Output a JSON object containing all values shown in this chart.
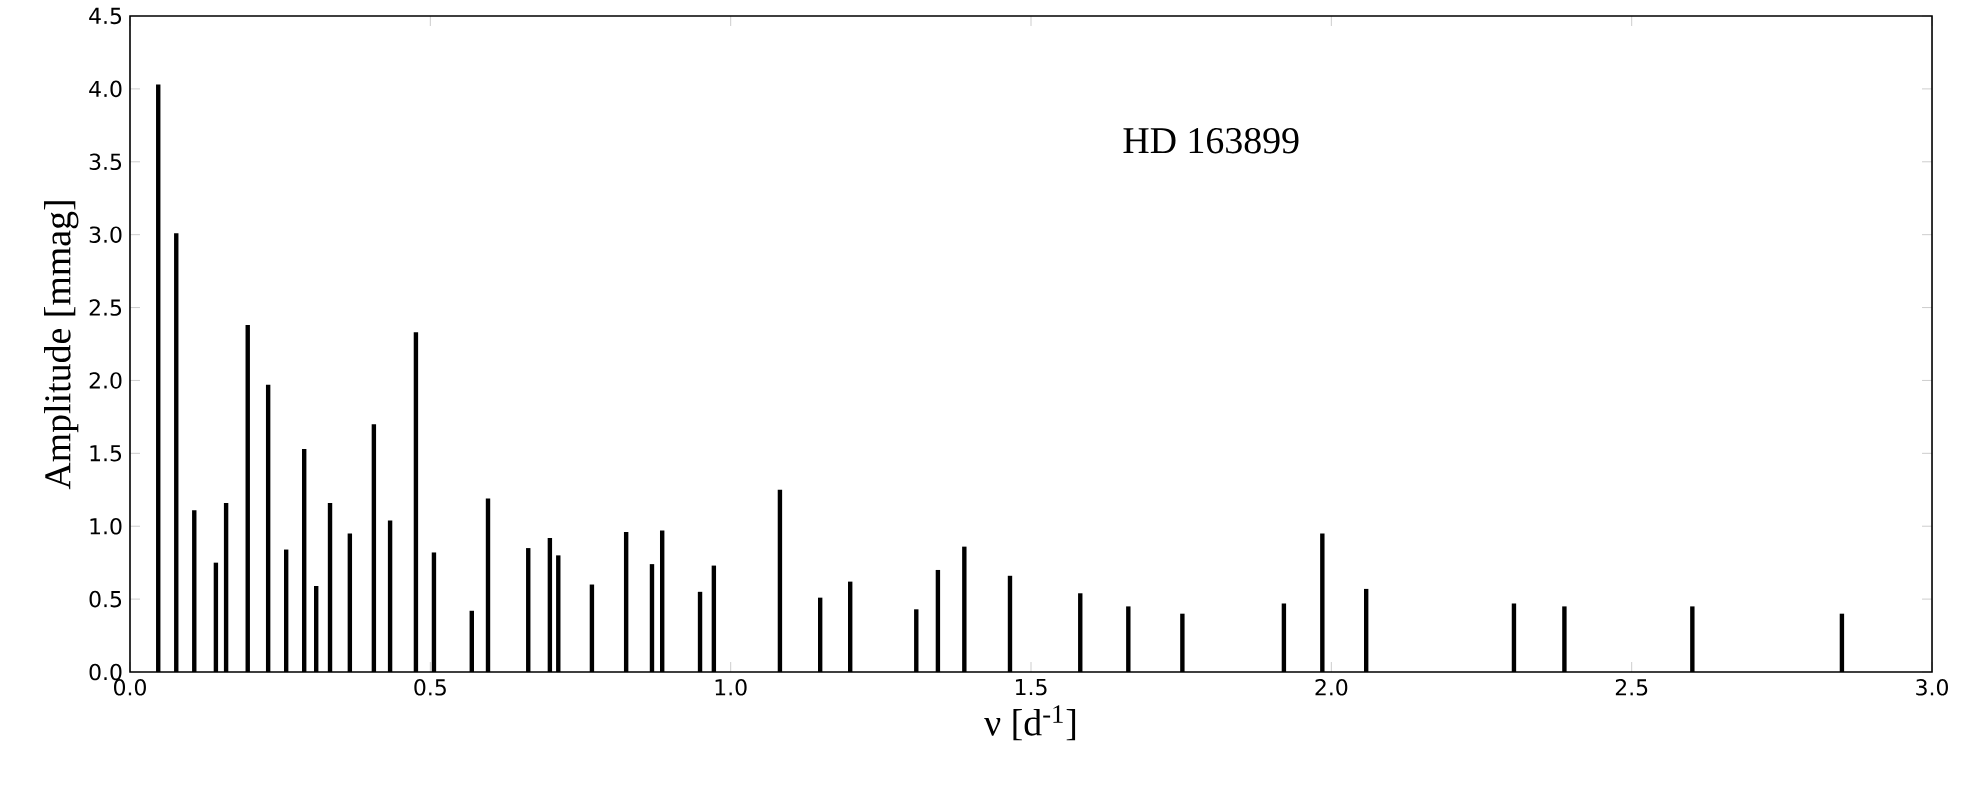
{
  "chart_data": {
    "type": "bar",
    "title": "HD 163899",
    "xlabel": "ν [d$^{-1}$]",
    "ylabel": "Amplitude [mmag]",
    "color": "#000000",
    "x": [
      0.047,
      0.077,
      0.107,
      0.143,
      0.16,
      0.196,
      0.23,
      0.26,
      0.29,
      0.31,
      0.333,
      0.366,
      0.406,
      0.433,
      0.476,
      0.506,
      0.569,
      0.596,
      0.663,
      0.699,
      0.713,
      0.769,
      0.826,
      0.869,
      0.886,
      0.949,
      0.972,
      1.082,
      1.149,
      1.199,
      1.309,
      1.345,
      1.389,
      1.465,
      1.582,
      1.662,
      1.752,
      1.921,
      1.985,
      2.058,
      2.304,
      2.388,
      2.601,
      2.85
    ],
    "values": [
      4.03,
      3.01,
      1.11,
      0.75,
      1.16,
      2.38,
      1.97,
      0.84,
      1.53,
      0.59,
      1.16,
      0.95,
      1.7,
      1.04,
      2.33,
      0.82,
      0.42,
      1.19,
      0.85,
      0.92,
      0.8,
      0.6,
      0.96,
      0.74,
      0.97,
      0.55,
      0.73,
      1.25,
      0.51,
      0.62,
      0.43,
      0.7,
      0.86,
      0.66,
      0.54,
      0.45,
      0.4,
      0.47,
      0.95,
      0.57,
      0.47,
      0.45,
      0.45,
      0.4
    ],
    "xlim": [
      0,
      3.0
    ],
    "xticks": [
      {
        "value": 0,
        "label": "0.0"
      },
      {
        "value": 0.5,
        "label": "0.5"
      },
      {
        "value": 1,
        "label": "1.0"
      },
      {
        "value": 1.5,
        "label": "1.5"
      },
      {
        "value": 2,
        "label": "2.0"
      },
      {
        "value": 2.5,
        "label": "2.5"
      },
      {
        "value": 3,
        "label": "3.0"
      }
    ],
    "ylim": [
      0,
      4.5
    ],
    "yticks": [
      {
        "value": 0,
        "label": "0.0"
      },
      {
        "value": 0.5,
        "label": "0.5"
      },
      {
        "value": 1,
        "label": "1.0"
      },
      {
        "value": 1.5,
        "label": "1.5"
      },
      {
        "value": 2,
        "label": "2.0"
      },
      {
        "value": 2.5,
        "label": "2.5"
      },
      {
        "value": 3,
        "label": "3.0"
      },
      {
        "value": 3.5,
        "label": "3.5"
      },
      {
        "value": 4,
        "label": "4.0"
      },
      {
        "value": 4.5,
        "label": "4.5"
      }
    ]
  }
}
